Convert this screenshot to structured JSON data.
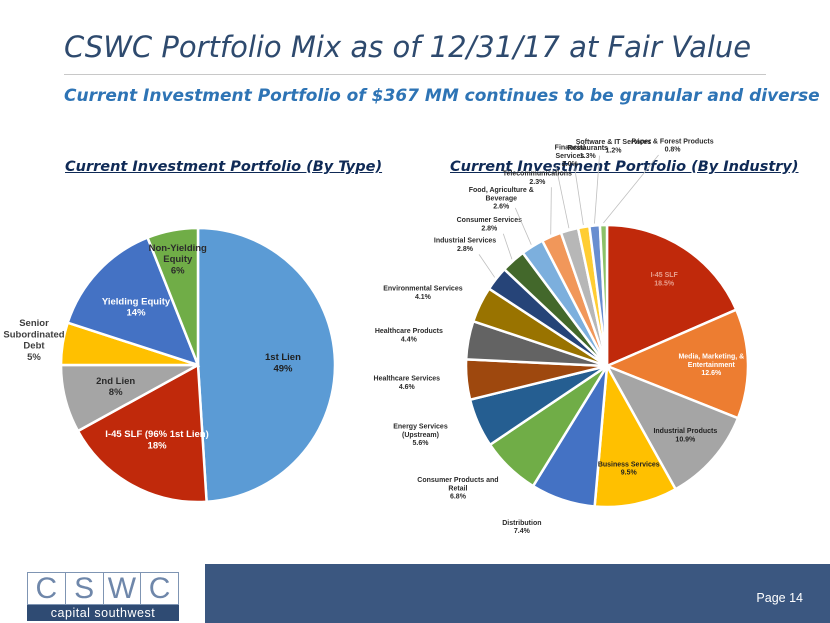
{
  "slide": {
    "title": "CSWC Portfolio Mix as of 12/31/17 at Fair Value",
    "subtitle": "Current Investment Portfolio of $367 MM continues to be granular and diverse",
    "page_label": "Page 14"
  },
  "logo": {
    "letters": [
      "C",
      "S",
      "W",
      "C"
    ],
    "tagline": "capital southwest"
  },
  "chart_data": [
    {
      "type": "pie",
      "title": "Current Investment Portfolio (By Type)",
      "unit": "%",
      "slices": [
        {
          "label": "1st Lien",
          "value": 49,
          "value_text": "49%",
          "color": "#5b9bd5"
        },
        {
          "label": "I-45 SLF (96% 1st Lien)",
          "value": 18,
          "value_text": "18%",
          "color": "#c0290b"
        },
        {
          "label": "2nd Lien",
          "value": 8,
          "value_text": "8%",
          "color": "#a5a5a5"
        },
        {
          "label": "Senior Subordinated Debt",
          "value": 5,
          "value_text": "5%",
          "color": "#ffc000"
        },
        {
          "label": "Yielding Equity",
          "value": 14,
          "value_text": "14%",
          "color": "#4472c4"
        },
        {
          "label": "Non-Yielding Equity",
          "value": 6,
          "value_text": "6%",
          "color": "#70ad47"
        }
      ]
    },
    {
      "type": "pie",
      "title": "Current Investment Portfolio (By Industry)",
      "unit": "%",
      "slices": [
        {
          "label": "I-45 SLF",
          "value": 18.5,
          "value_text": "18.5%",
          "color": "#c0290b"
        },
        {
          "label": "Media, Marketing, & Entertainment",
          "value": 12.6,
          "value_text": "12.6%",
          "color": "#ed7d31"
        },
        {
          "label": "Industrial Products",
          "value": 10.9,
          "value_text": "10.9%",
          "color": "#a5a5a5"
        },
        {
          "label": "Business Services",
          "value": 9.5,
          "value_text": "9.5%",
          "color": "#ffc000"
        },
        {
          "label": "Distribution",
          "value": 7.4,
          "value_text": "7.4%",
          "color": "#4472c4"
        },
        {
          "label": "Consumer Products and Retail",
          "value": 6.8,
          "value_text": "6.8%",
          "color": "#70ad47"
        },
        {
          "label": "Energy Services (Upstream)",
          "value": 5.6,
          "value_text": "5.6%",
          "color": "#255e91"
        },
        {
          "label": "Healthcare Services",
          "value": 4.6,
          "value_text": "4.6%",
          "color": "#9e480e"
        },
        {
          "label": "Healthcare Products",
          "value": 4.4,
          "value_text": "4.4%",
          "color": "#636363"
        },
        {
          "label": "Environmental Services",
          "value": 4.1,
          "value_text": "4.1%",
          "color": "#997300"
        },
        {
          "label": "Industrial Services",
          "value": 2.8,
          "value_text": "2.8%",
          "color": "#264478"
        },
        {
          "label": "Consumer Services",
          "value": 2.8,
          "value_text": "2.8%",
          "color": "#43682b"
        },
        {
          "label": "Food, Agriculture & Beverage",
          "value": 2.6,
          "value_text": "2.6%",
          "color": "#7cafdd"
        },
        {
          "label": "Telecommunications",
          "value": 2.3,
          "value_text": "2.3%",
          "color": "#f1975a"
        },
        {
          "label": "Financial Services",
          "value": 2.0,
          "value_text": "2.0%",
          "color": "#b7b7b7"
        },
        {
          "label": "Restaurants",
          "value": 1.3,
          "value_text": "1.3%",
          "color": "#ffcd33"
        },
        {
          "label": "Software & IT Services",
          "value": 1.2,
          "value_text": "1.2%",
          "color": "#698ed0"
        },
        {
          "label": "Paper & Forest Products",
          "value": 0.8,
          "value_text": "0.8%",
          "color": "#8cc168"
        }
      ]
    }
  ]
}
